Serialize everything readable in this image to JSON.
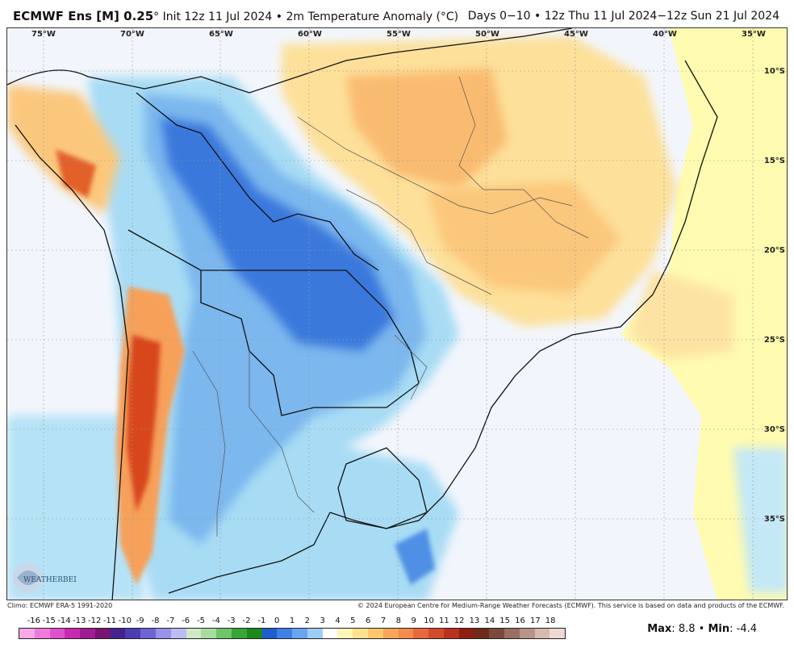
{
  "header": {
    "model_title": "ECMWF Ens [M] 0.25",
    "degree_mark": "°",
    "init_text": "Init 12z 11 Jul 2024",
    "bullet": "•",
    "variable_text": "2m Temperature Anomaly (°C)",
    "valid_text": "Days 0−10 • 12z Thu 11 Jul 2024−12z Sun 21 Jul 2024"
  },
  "map": {
    "longitude_labels": [
      "75°W",
      "70°W",
      "65°W",
      "60°W",
      "55°W",
      "50°W",
      "45°W",
      "40°W",
      "35°W"
    ],
    "latitude_labels": [
      "10°S",
      "15°S",
      "20°S",
      "25°S",
      "30°S",
      "35°S"
    ]
  },
  "footer": {
    "climo_text": "Climo: ECMWF ERA-5 1991-2020",
    "copyright_text": "© 2024 European Centre for Medium-Range Weather Forecasts (ECMWF). This service is based on data and products of the ECMWF."
  },
  "colorbar": {
    "labels": [
      "-16",
      "-15",
      "-14",
      "-13",
      "-12",
      "-11",
      "-10",
      "-9",
      "-8",
      "-7",
      "-6",
      "-5",
      "-4",
      "-3",
      "-2",
      "-1",
      "0",
      "1",
      "2",
      "3",
      "4",
      "5",
      "6",
      "7",
      "8",
      "9",
      "10",
      "11",
      "12",
      "13",
      "14",
      "15",
      "16",
      "17",
      "18"
    ],
    "colors": [
      "#f7a8e9",
      "#ee7bd9",
      "#e04fcc",
      "#c928b3",
      "#a11c93",
      "#78156f",
      "#45228f",
      "#4d3db3",
      "#6e64d6",
      "#9792ea",
      "#bdbbf4",
      "#cfe9c6",
      "#a8dc9e",
      "#6fc56a",
      "#38a537",
      "#1a8a1e",
      "#1e5ccf",
      "#3f80e6",
      "#6aa4f2",
      "#9fcdf8",
      "#ffffff",
      "#fff6b8",
      "#ffe18f",
      "#ffc66d",
      "#f9a65a",
      "#f48a4b",
      "#e86a3c",
      "#d44a2c",
      "#b8321f",
      "#8e1e12",
      "#6e2a1b",
      "#7c4a3a",
      "#9a6e60",
      "#b89488",
      "#d6bab0",
      "#f0d8d2"
    ]
  },
  "stats": {
    "max_label": "Max",
    "max_value": "8.8",
    "separator": "•",
    "min_label": "Min",
    "min_value": "-4.4"
  },
  "logo_text": "WEATHERBELL"
}
